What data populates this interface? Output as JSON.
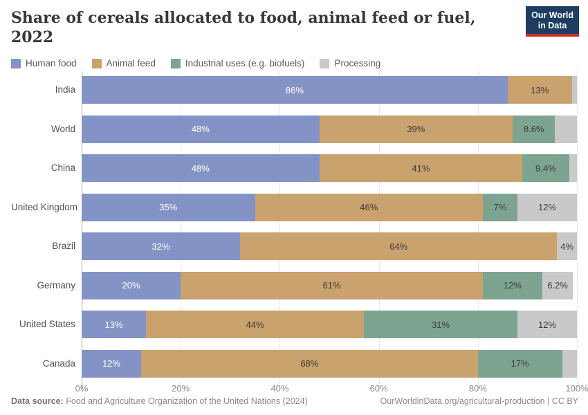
{
  "header": {
    "title": "Share of cereals allocated to food, animal feed or fuel, 2022",
    "logo_line1": "Our World",
    "logo_line2": "in Data",
    "logo_bg": "#1d3d63",
    "logo_accent": "#cf2d27"
  },
  "legend": [
    {
      "label": "Human food",
      "color": "#8493c6"
    },
    {
      "label": "Animal feed",
      "color": "#c9a26d"
    },
    {
      "label": "Industrial uses (e.g. biofuels)",
      "color": "#7da491"
    },
    {
      "label": "Processing",
      "color": "#c9c9c9"
    }
  ],
  "chart_data": {
    "type": "bar",
    "stacked": true,
    "orientation": "horizontal",
    "title": "Share of cereals allocated to food, animal feed or fuel, 2022",
    "categories": [
      "India",
      "World",
      "China",
      "United Kingdom",
      "Brazil",
      "Germany",
      "United States",
      "Canada"
    ],
    "series": [
      {
        "name": "Human food",
        "color": "#8493c6",
        "text_color": "#ffffff",
        "values": [
          86,
          48,
          48,
          35,
          32,
          20,
          13,
          12
        ],
        "labels": [
          "86%",
          "48%",
          "48%",
          "35%",
          "32%",
          "20%",
          "13%",
          "12%"
        ]
      },
      {
        "name": "Animal feed",
        "color": "#c9a26d",
        "text_color": "#3c3c3c",
        "values": [
          13,
          39,
          41,
          46,
          64,
          61,
          44,
          68
        ],
        "labels": [
          "13%",
          "39%",
          "41%",
          "46%",
          "64%",
          "61%",
          "44%",
          "68%"
        ]
      },
      {
        "name": "Industrial uses (e.g. biofuels)",
        "color": "#7da491",
        "text_color": "#3c3c3c",
        "values": [
          0,
          8.6,
          9.4,
          7,
          0,
          12,
          31,
          17
        ],
        "labels": [
          "",
          "8.6%",
          "9.4%",
          "7%",
          "",
          "12%",
          "31%",
          "17%"
        ]
      },
      {
        "name": "Processing",
        "color": "#c9c9c9",
        "text_color": "#3c3c3c",
        "values": [
          1,
          4.4,
          1.6,
          12,
          4,
          6.2,
          12,
          3
        ],
        "labels": [
          "",
          "",
          "",
          "12%",
          "4%",
          "6.2%",
          "12%",
          ""
        ]
      }
    ],
    "xlim": [
      0,
      100
    ],
    "x_ticks": [
      {
        "value": 0,
        "label": "0%"
      },
      {
        "value": 20,
        "label": "20%"
      },
      {
        "value": 40,
        "label": "40%"
      },
      {
        "value": 60,
        "label": "60%"
      },
      {
        "value": 80,
        "label": "80%"
      },
      {
        "value": 100,
        "label": "100%"
      }
    ],
    "xlabel": "",
    "ylabel": "",
    "grid": "dashed-vertical",
    "legend_position": "top"
  },
  "footer": {
    "datasource_label": "Data source:",
    "datasource_text": " Food and Agriculture Organization of the United Nations (2024)",
    "credit": "OurWorldinData.org/agricultural-production | CC BY"
  }
}
